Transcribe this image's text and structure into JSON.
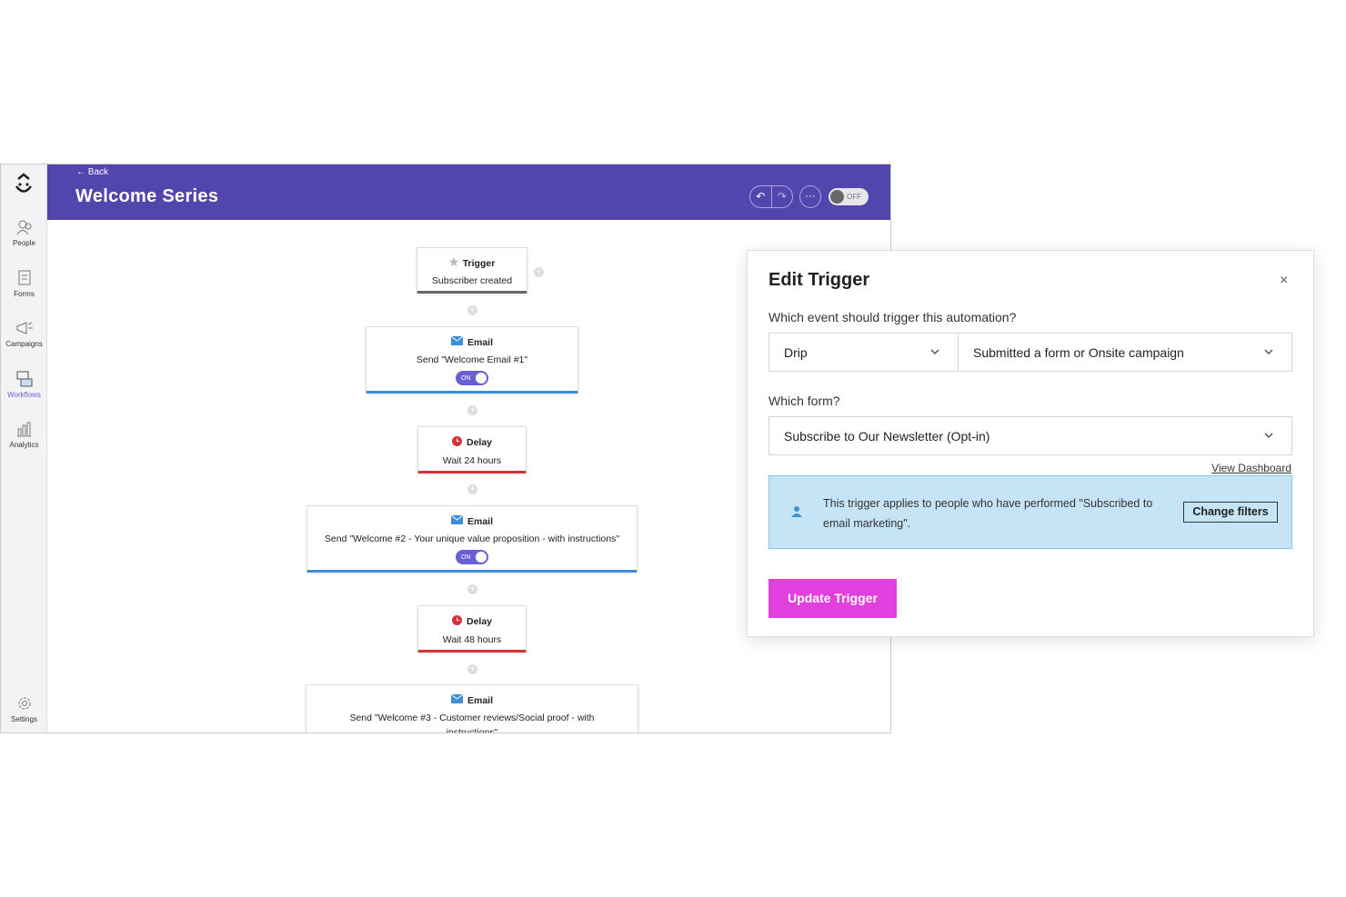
{
  "header": {
    "back": "Back",
    "title": "Welcome Series",
    "toggle": "OFF"
  },
  "sidebar": {
    "items": [
      "People",
      "Forms",
      "Campaigns",
      "Workflows",
      "Analytics"
    ],
    "settings": "Settings"
  },
  "workflow": {
    "nodes": [
      {
        "type": "Trigger",
        "lines": [
          "Subscriber created"
        ]
      },
      {
        "type": "Email",
        "lines": [
          "Send \"Welcome Email #1\""
        ],
        "toggle": "ON"
      },
      {
        "type": "Delay",
        "lines": [
          "Wait 24 hours"
        ]
      },
      {
        "type": "Email",
        "lines": [
          "Send \"Welcome #2 - Your unique value proposition - with instructions\""
        ],
        "toggle": "ON"
      },
      {
        "type": "Delay",
        "lines": [
          "Wait 48 hours"
        ]
      },
      {
        "type": "Email",
        "lines": [
          "Send \"Welcome #3 - Customer reviews/Social proof - with",
          "instructions\""
        ]
      }
    ]
  },
  "modal": {
    "title": "Edit Trigger",
    "event_label": "Which event should trigger this automation?",
    "event_type": "Drip",
    "event": "Submitted a form or Onsite campaign",
    "form_label": "Which form?",
    "form": "Subscribe to Our Newsletter (Opt-in)",
    "link": "View Dashboard",
    "info_lines": [
      "This trigger applies to people who have performed \"Subscribed to",
      "email marketing\"."
    ],
    "filter_button": "Change filters",
    "submit": "Update Trigger"
  }
}
